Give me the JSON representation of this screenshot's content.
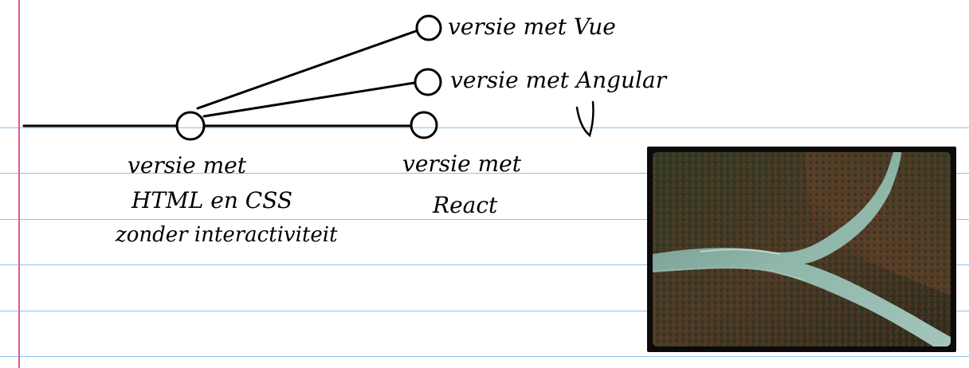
{
  "notebook": {
    "colors": {
      "rule": "#8fc3ea",
      "margin": "#e0569a",
      "ink": "#000000"
    }
  },
  "diagram": {
    "nodes": {
      "html_css": {
        "lines": [
          "versie met",
          "HTML en CSS",
          "zonder interactiviteit"
        ]
      },
      "react": {
        "lines": [
          "versie met",
          "React"
        ]
      },
      "vue": {
        "label": "versie met Vue"
      },
      "angular": {
        "label": "versie met Angular"
      }
    }
  },
  "photo": {
    "subject": "aerial view of a river fork through an autumn forest",
    "colors": {
      "frame": "#0a0a0a",
      "forest": "#3a3326",
      "water": "#7fa79b"
    }
  }
}
